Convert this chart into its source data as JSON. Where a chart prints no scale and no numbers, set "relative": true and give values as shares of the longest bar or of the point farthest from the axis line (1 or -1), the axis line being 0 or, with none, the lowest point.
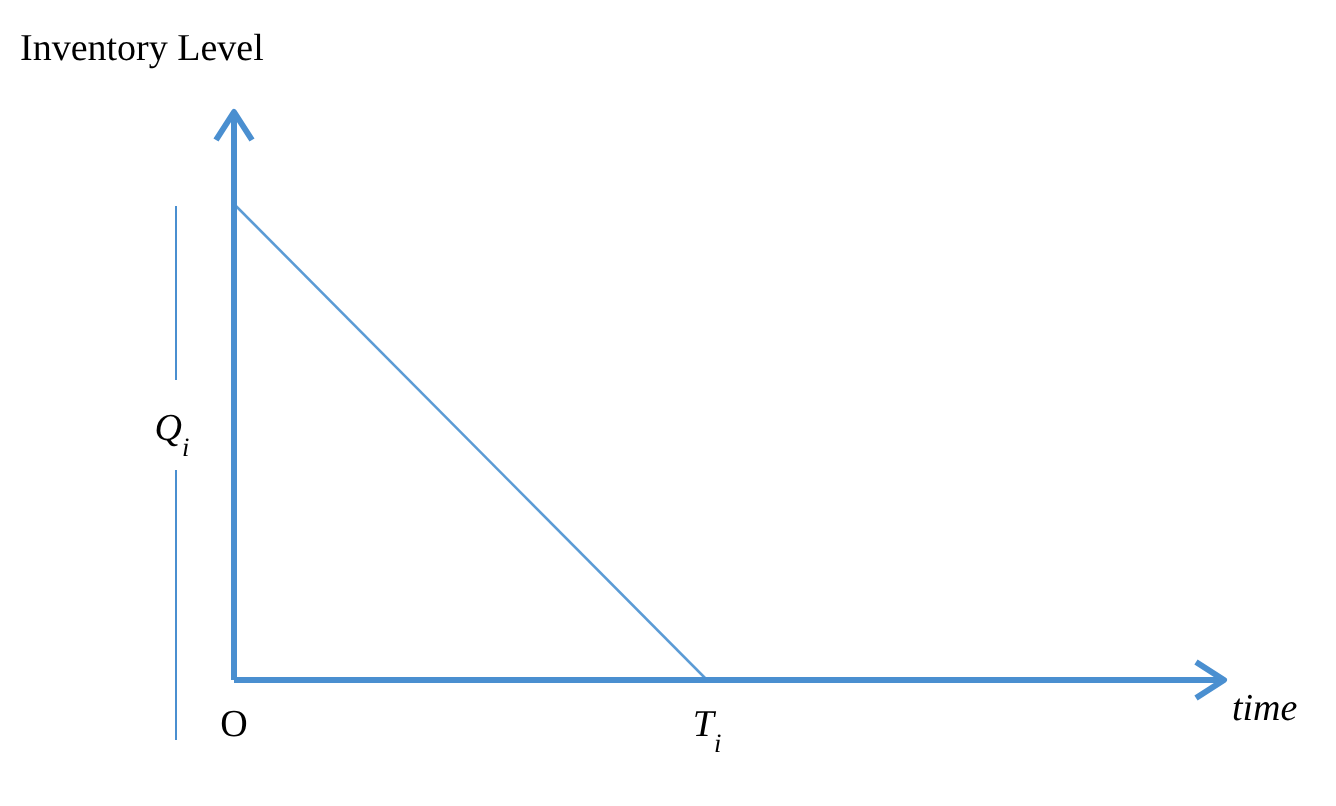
{
  "chart_data": {
    "type": "line",
    "relative": true,
    "ylabel": "Inventory Level",
    "xlabel": "time",
    "categories": [
      "O",
      "T$_{i}$",
      null
    ],
    "series": [
      {
        "color": "#5b9bd5",
        "values": [
          1,
          0,
          null
        ]
      }
    ],
    "annotations": [
      "Q$_{i}$"
    ],
    "grid": false,
    "legend": false,
    "marker": "none",
    "line_style": "solid"
  }
}
